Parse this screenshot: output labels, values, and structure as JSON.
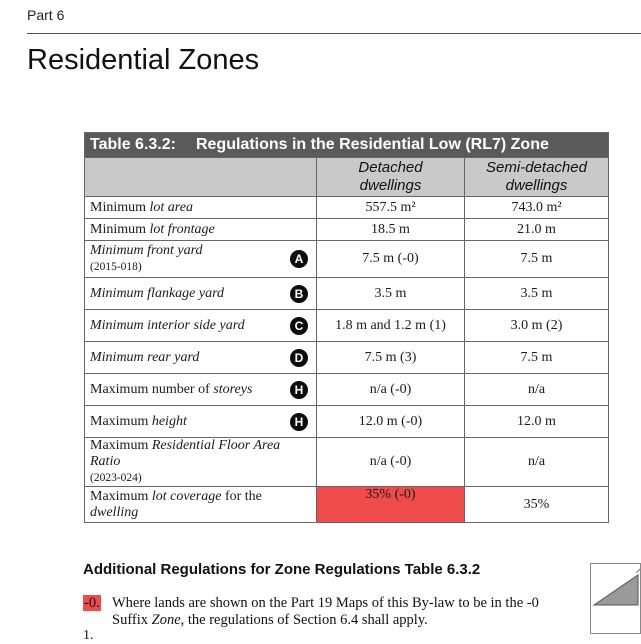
{
  "header": {
    "part": "Part 6",
    "title": "Residential Zones"
  },
  "table": {
    "number": "Table 6.3.2:",
    "title": "Regulations in the Residential Low (RL7) Zone",
    "columns": [
      "Detached\ndwellings",
      "Semi-detached\ndwellings"
    ],
    "rows": [
      {
        "pre": "Minimum ",
        "term": "lot area",
        "post": "",
        "note": "",
        "badge": "",
        "detached": "557.5 m²",
        "semi": "743.0 m²"
      },
      {
        "pre": "Minimum ",
        "term": "lot frontage",
        "post": "",
        "note": "",
        "badge": "",
        "detached": "18.5 m",
        "semi": "21.0 m"
      },
      {
        "pre": "",
        "term": "Minimum front yard",
        "post": "",
        "note": "(2015-018)",
        "badge": "A",
        "detached": "7.5 m (-0)",
        "semi": "7.5 m"
      },
      {
        "pre": "",
        "term": "Minimum flankage yard",
        "post": "",
        "note": "",
        "badge": "B",
        "detached": "3.5 m",
        "semi": "3.5 m"
      },
      {
        "pre": "",
        "term": "Minimum interior side yard",
        "post": "",
        "note": "",
        "badge": "C",
        "detached": "1.8 m and 1.2 m (1)",
        "semi": "3.0 m (2)"
      },
      {
        "pre": "",
        "term": "Minimum rear yard",
        "post": "",
        "note": "",
        "badge": "D",
        "detached": "7.5 m (3)",
        "semi": "7.5 m"
      },
      {
        "pre": "Maximum number of ",
        "term": "storeys",
        "post": "",
        "note": "",
        "badge": "H",
        "detached": "n/a (-0)",
        "semi": "n/a"
      },
      {
        "pre": "Maximum ",
        "term": "height",
        "post": "",
        "note": "",
        "badge": "H",
        "detached": "12.0 m (-0)",
        "semi": "12.0 m"
      },
      {
        "pre": "Maximum ",
        "term": "Residential Floor Area Ratio",
        "post": "",
        "note": "(2023-024)",
        "badge": "",
        "detached": "n/a (-0)",
        "semi": "n/a"
      },
      {
        "pre": "Maximum ",
        "term": "lot coverage",
        "post": " for the ",
        "term2": "dwelling",
        "note": "",
        "badge": "",
        "detached": "35% (-0)",
        "semi": "35%"
      }
    ]
  },
  "additional": {
    "heading": "Additional Regulations for Zone Regulations Table 6.3.2",
    "note_marker": "-0.",
    "note_text_1": "Where lands are shown on the Part 19 Maps of this By-law to be in the -0 Suffix ",
    "note_term": "Zone",
    "note_text_2": ", the regulations of Section 6.4 shall apply.",
    "next_number": "1."
  },
  "colors": {
    "title_bar": "#5a5a5a",
    "column_header": "#c9c9c9",
    "highlight": "#ef4b4b"
  }
}
